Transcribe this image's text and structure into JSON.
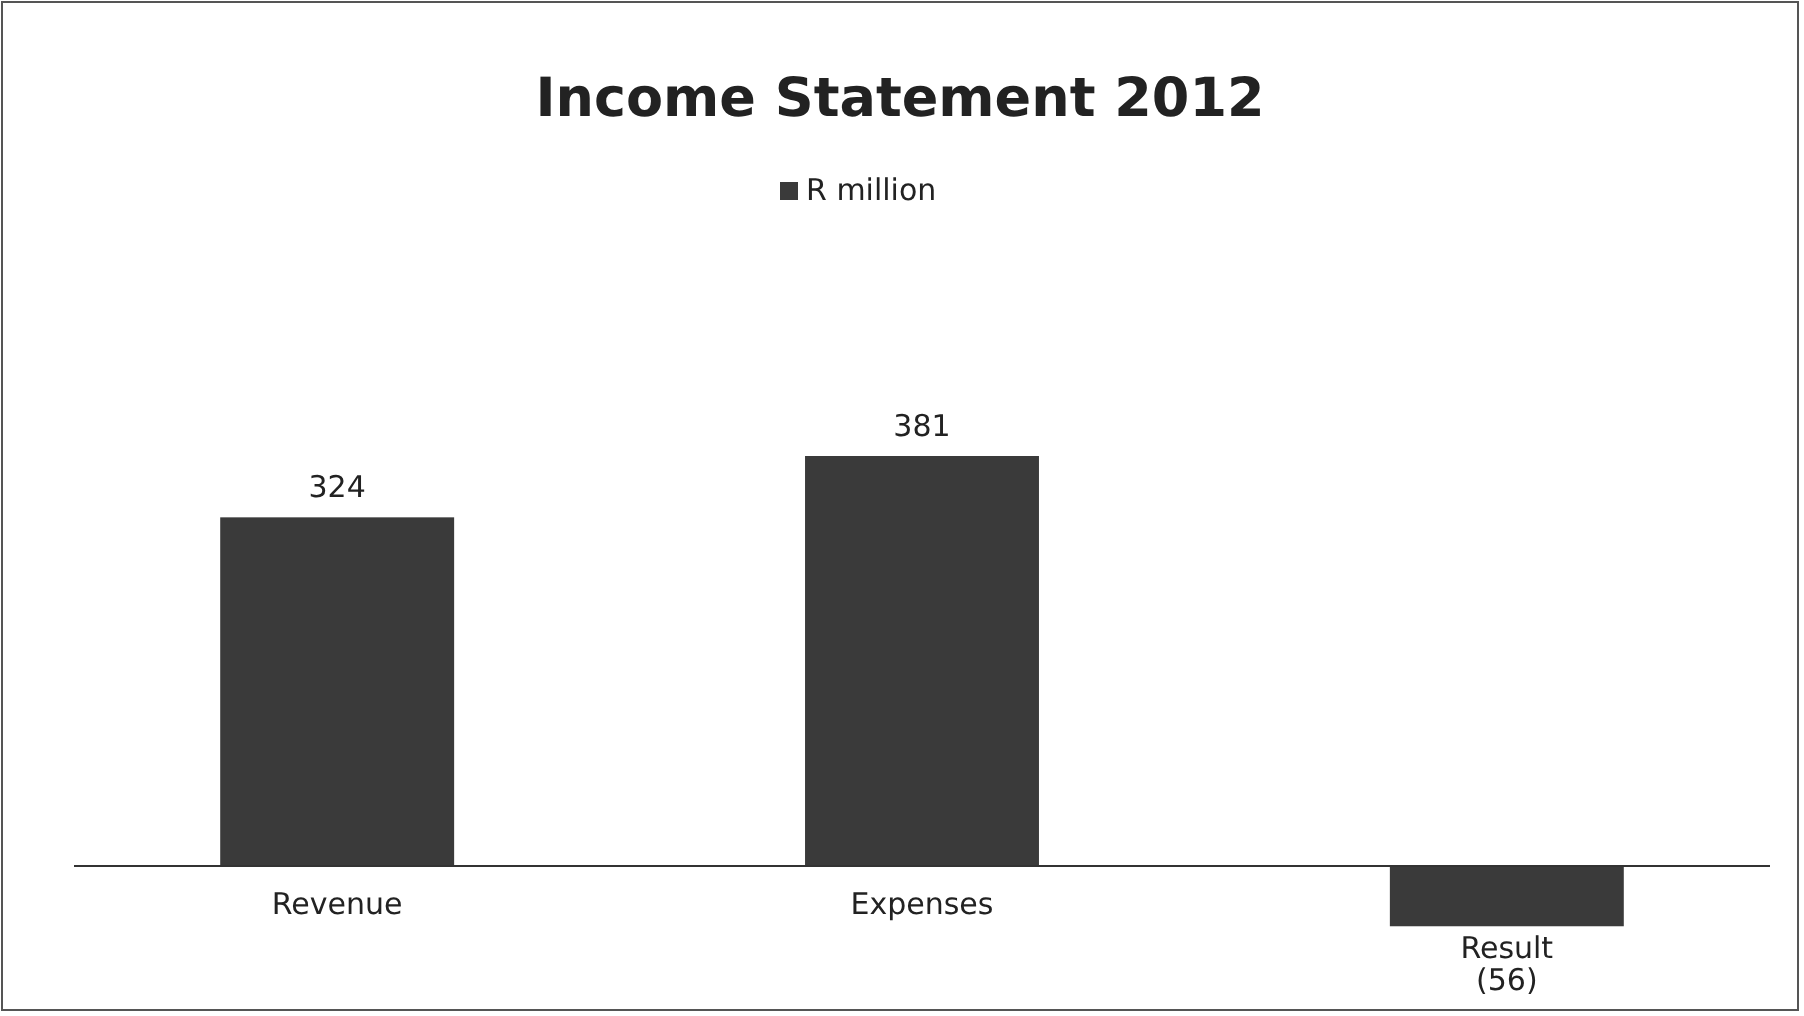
{
  "chart_data": {
    "type": "bar",
    "title": "Income Statement 2012",
    "categories": [
      "Revenue",
      "Expenses",
      "Result"
    ],
    "series": [
      {
        "name": "R million",
        "color": "#3a3a3a",
        "values": [
          324,
          381,
          -56
        ],
        "value_labels": [
          "324",
          "381",
          "(56)"
        ]
      }
    ],
    "legend": "top",
    "grid": false
  }
}
